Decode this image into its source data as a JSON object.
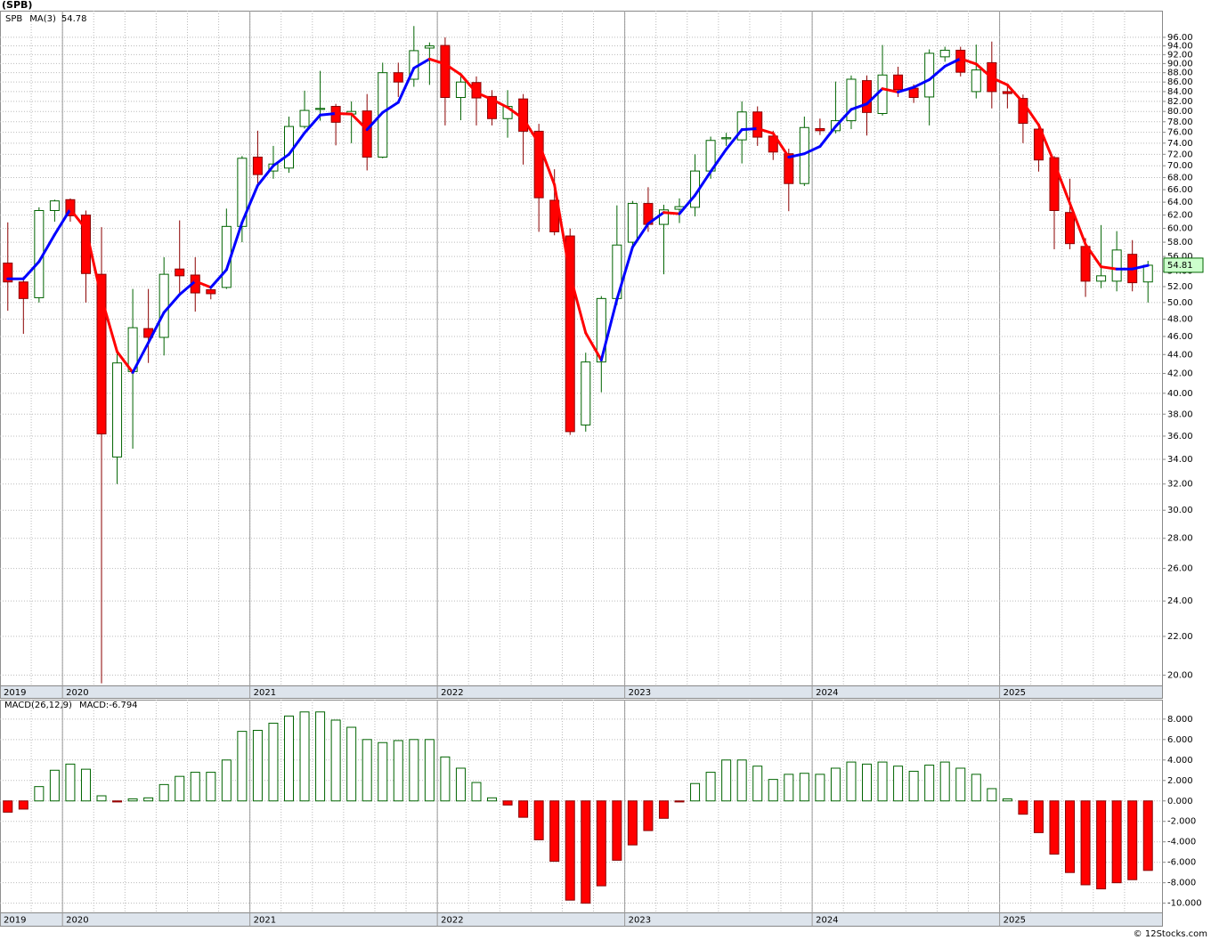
{
  "chart_data": [
    {
      "type": "candlestick",
      "title": "(SPB)",
      "name": "SPB",
      "categories": [
        "2019",
        null,
        null,
        null,
        "2020",
        null,
        null,
        null,
        null,
        null,
        null,
        null,
        null,
        null,
        null,
        null,
        "2021",
        null,
        null,
        null,
        null,
        null,
        null,
        null,
        null,
        null,
        null,
        null,
        "2022",
        null,
        null,
        null,
        null,
        null,
        null,
        null,
        null,
        null,
        null,
        null,
        "2023",
        null,
        null,
        null,
        null,
        null,
        null,
        null,
        null,
        null,
        null,
        null,
        "2024",
        null,
        null,
        null,
        null,
        null,
        null,
        null,
        null,
        null,
        null,
        null,
        "2025",
        null,
        null,
        null,
        null,
        null,
        null,
        null,
        null,
        null
      ],
      "open": [
        55.1,
        52.6,
        50.6,
        62.7,
        64.4,
        62.0,
        53.6,
        34.2,
        42.2,
        46.9,
        45.9,
        54.3,
        53.5,
        51.6,
        51.9,
        60.3,
        71.5,
        69.1,
        69.6,
        77.1,
        80.4,
        81.0,
        79.5,
        80.1,
        71.5,
        88.0,
        86.6,
        93.5,
        94.1,
        82.8,
        85.9,
        83.0,
        78.6,
        82.5,
        76.2,
        64.3,
        58.9,
        37.0,
        43.2,
        50.5,
        58.0,
        63.8,
        60.6,
        62.9,
        63.2,
        69.1,
        74.8,
        74.6,
        79.9,
        75.3,
        72.1,
        67.0,
        76.7,
        76.3,
        78.2,
        86.3,
        79.6,
        87.5,
        84.7,
        82.9,
        91.5,
        93.0,
        84.0,
        90.2,
        84.0,
        82.6,
        76.6,
        71.4,
        62.4,
        57.4,
        52.7,
        52.7,
        56.3,
        52.6
      ],
      "high": [
        60.9,
        53.3,
        63.2,
        64.4,
        64.6,
        62.7,
        60.2,
        44.3,
        51.7,
        51.7,
        55.9,
        61.2,
        55.9,
        52.0,
        63.0,
        71.7,
        76.3,
        73.5,
        79.0,
        84.2,
        88.4,
        81.5,
        82.0,
        83.5,
        90.2,
        90.2,
        98.7,
        94.8,
        96.0,
        88.0,
        87.2,
        84.3,
        84.3,
        83.5,
        77.6,
        69.4,
        60.0,
        44.2,
        50.8,
        63.5,
        64.2,
        66.4,
        63.6,
        64.6,
        72.0,
        75.2,
        75.9,
        82.0,
        81.0,
        76.3,
        73.0,
        79.0,
        78.6,
        86.1,
        87.4,
        87.4,
        94.2,
        89.3,
        85.5,
        93.2,
        93.8,
        93.8,
        94.3,
        95.0,
        85.5,
        83.4,
        77.6,
        71.7,
        67.8,
        58.6,
        60.5,
        59.6,
        58.3,
        55.4
      ],
      "low": [
        49.0,
        46.3,
        50.0,
        61.0,
        61.0,
        50.0,
        19.6,
        32.0,
        34.9,
        43.1,
        43.9,
        51.2,
        48.9,
        50.4,
        51.7,
        58.0,
        66.6,
        67.8,
        68.8,
        76.7,
        78.2,
        73.6,
        74.0,
        69.2,
        71.3,
        82.9,
        85.0,
        85.4,
        77.3,
        78.3,
        77.3,
        77.3,
        75.0,
        70.2,
        59.5,
        59.0,
        36.1,
        36.4,
        40.1,
        49.7,
        57.0,
        59.5,
        53.6,
        60.8,
        61.8,
        67.8,
        73.5,
        70.4,
        73.5,
        71.0,
        62.6,
        66.6,
        75.5,
        75.8,
        76.6,
        75.4,
        79.2,
        82.9,
        81.7,
        77.3,
        90.4,
        87.2,
        82.6,
        80.6,
        80.6,
        74.0,
        69.0,
        57.0,
        57.0,
        50.7,
        51.8,
        51.4,
        51.4,
        50.0
      ],
      "close": [
        52.6,
        50.5,
        62.7,
        64.2,
        61.9,
        53.7,
        36.2,
        43.1,
        47.0,
        45.9,
        53.6,
        53.4,
        51.2,
        51.1,
        60.3,
        71.3,
        68.5,
        70.3,
        77.1,
        80.2,
        80.6,
        77.9,
        80.0,
        71.5,
        88.0,
        86.0,
        92.9,
        94.0,
        82.8,
        86.0,
        82.7,
        78.6,
        81.0,
        76.2,
        64.7,
        59.5,
        36.4,
        43.2,
        50.5,
        57.6,
        63.8,
        60.6,
        62.8,
        63.3,
        69.1,
        74.5,
        75.0,
        79.9,
        75.1,
        72.4,
        67.0,
        76.9,
        76.3,
        78.2,
        86.6,
        79.8,
        87.5,
        84.4,
        82.8,
        92.3,
        93.0,
        88.1,
        88.6,
        84.0,
        83.6,
        77.7,
        71.0,
        62.7,
        57.8,
        52.7,
        53.4,
        56.9,
        52.5,
        54.81
      ],
      "up_color": "#006400",
      "down_color": "#ff0000",
      "log_scale": true,
      "ylim": [
        19.5,
        102.5
      ],
      "yticks": [
        {
          "value": 20,
          "label": "20.00"
        },
        {
          "value": 22,
          "label": "22.00"
        },
        {
          "value": 24,
          "label": "24.00"
        },
        {
          "value": 26,
          "label": "26.00"
        },
        {
          "value": 28,
          "label": "28.00"
        },
        {
          "value": 30,
          "label": "30.00"
        },
        {
          "value": 32,
          "label": "32.00"
        },
        {
          "value": 34,
          "label": "34.00"
        },
        {
          "value": 36,
          "label": "36.00"
        },
        {
          "value": 38,
          "label": "38.00"
        },
        {
          "value": 40,
          "label": "40.00"
        },
        {
          "value": 42,
          "label": "42.00"
        },
        {
          "value": 44,
          "label": "44.00"
        },
        {
          "value": 46,
          "label": "46.00"
        },
        {
          "value": 48,
          "label": "48.00"
        },
        {
          "value": 50,
          "label": "50.00"
        },
        {
          "value": 52,
          "label": "52.00"
        },
        {
          "value": 54,
          "label": "54.00"
        },
        {
          "value": 56,
          "label": "56.00"
        },
        {
          "value": 58,
          "label": "58.00"
        },
        {
          "value": 60,
          "label": "60.00"
        },
        {
          "value": 62,
          "label": "62.00"
        },
        {
          "value": 64,
          "label": "64.00"
        },
        {
          "value": 66,
          "label": "66.00"
        },
        {
          "value": 68,
          "label": "68.00"
        },
        {
          "value": 70,
          "label": "70.00"
        },
        {
          "value": 72,
          "label": "72.00"
        },
        {
          "value": 74,
          "label": "74.00"
        },
        {
          "value": 76,
          "label": "76.00"
        },
        {
          "value": 78,
          "label": "78.00"
        },
        {
          "value": 80,
          "label": "80.00"
        },
        {
          "value": 82,
          "label": "82.00"
        },
        {
          "value": 84,
          "label": "84.00"
        },
        {
          "value": 86,
          "label": "86.00"
        },
        {
          "value": 88,
          "label": "88.00"
        },
        {
          "value": 90,
          "label": "90.00"
        },
        {
          "value": 92,
          "label": "92.00"
        },
        {
          "value": 94,
          "label": "94.00"
        },
        {
          "value": 96,
          "label": "96.00"
        }
      ],
      "grid": true,
      "series": [
        {
          "name": "MA(3)",
          "color": "#0000ff",
          "down_color": "#ff0000",
          "values": [
            53.0,
            53.0,
            55.3,
            59.1,
            62.9,
            59.9,
            50.6,
            44.3,
            42.1,
            45.3,
            48.8,
            51.0,
            52.7,
            51.9,
            54.2,
            60.9,
            66.7,
            70.0,
            72.0,
            75.9,
            79.3,
            79.6,
            79.5,
            76.5,
            79.8,
            81.8,
            89.0,
            91.0,
            89.9,
            87.6,
            83.8,
            82.4,
            80.8,
            78.6,
            74.0,
            66.8,
            53.5,
            46.4,
            43.4,
            50.4,
            57.3,
            60.7,
            62.4,
            62.2,
            65.1,
            69.0,
            72.9,
            76.5,
            76.7,
            75.8,
            71.5,
            72.1,
            73.4,
            77.1,
            80.4,
            81.5,
            84.6,
            83.9,
            84.9,
            86.5,
            89.4,
            91.1,
            89.9,
            86.9,
            85.4,
            81.8,
            77.4,
            70.5,
            63.8,
            57.7,
            54.6,
            54.3,
            54.3,
            54.78
          ]
        }
      ]
    },
    {
      "type": "bar",
      "title": "MACD(26,12,9)",
      "categories": [
        "2019",
        null,
        null,
        null,
        "2020",
        null,
        null,
        null,
        null,
        null,
        null,
        null,
        null,
        null,
        null,
        null,
        "2021",
        null,
        null,
        null,
        null,
        null,
        null,
        null,
        null,
        null,
        null,
        null,
        "2022",
        null,
        null,
        null,
        null,
        null,
        null,
        null,
        null,
        null,
        null,
        null,
        "2023",
        null,
        null,
        null,
        null,
        null,
        null,
        null,
        null,
        null,
        null,
        null,
        "2024",
        null,
        null,
        null,
        null,
        null,
        null,
        null,
        null,
        null,
        null,
        null,
        "2025",
        null,
        null,
        null,
        null,
        null,
        null,
        null,
        null,
        null
      ],
      "series": [
        {
          "name": "MACD:",
          "color": "#006400",
          "down_color": "#ff0000",
          "values": [
            -1.1,
            -0.8,
            1.4,
            3.0,
            3.6,
            3.1,
            0.5,
            -0.1,
            0.2,
            0.3,
            1.6,
            2.4,
            2.8,
            2.8,
            4.0,
            6.8,
            6.9,
            7.6,
            8.3,
            8.7,
            8.7,
            7.9,
            7.2,
            6.0,
            5.7,
            5.9,
            6.0,
            6.0,
            4.3,
            3.2,
            1.8,
            0.3,
            -0.4,
            -1.6,
            -3.8,
            -5.9,
            -9.7,
            -10.0,
            -8.3,
            -5.8,
            -4.3,
            -2.9,
            -1.7,
            -0.1,
            1.7,
            2.8,
            4.0,
            4.0,
            3.4,
            2.1,
            2.6,
            2.7,
            2.6,
            3.2,
            3.8,
            3.6,
            3.8,
            3.4,
            2.9,
            3.5,
            3.8,
            3.2,
            2.6,
            1.2,
            0.2,
            -1.3,
            -3.1,
            -5.2,
            -7.0,
            -8.2,
            -8.6,
            -8.0,
            -7.7,
            -6.794
          ]
        }
      ],
      "ylim": [
        -10.9,
        9.9
      ],
      "yticks": [
        {
          "value": -10,
          "label": "-10.000"
        },
        {
          "value": -8,
          "label": "-8.000"
        },
        {
          "value": -6,
          "label": "-6.000"
        },
        {
          "value": -4,
          "label": "-4.000"
        },
        {
          "value": -2,
          "label": "-2.000"
        },
        {
          "value": 0,
          "label": "0.000"
        },
        {
          "value": 2,
          "label": "2.000"
        },
        {
          "value": 4,
          "label": "4.000"
        },
        {
          "value": 6,
          "label": "6.000"
        },
        {
          "value": 8,
          "label": "8.000"
        }
      ],
      "grid": true
    }
  ],
  "footer": "© 12Stocks.com"
}
